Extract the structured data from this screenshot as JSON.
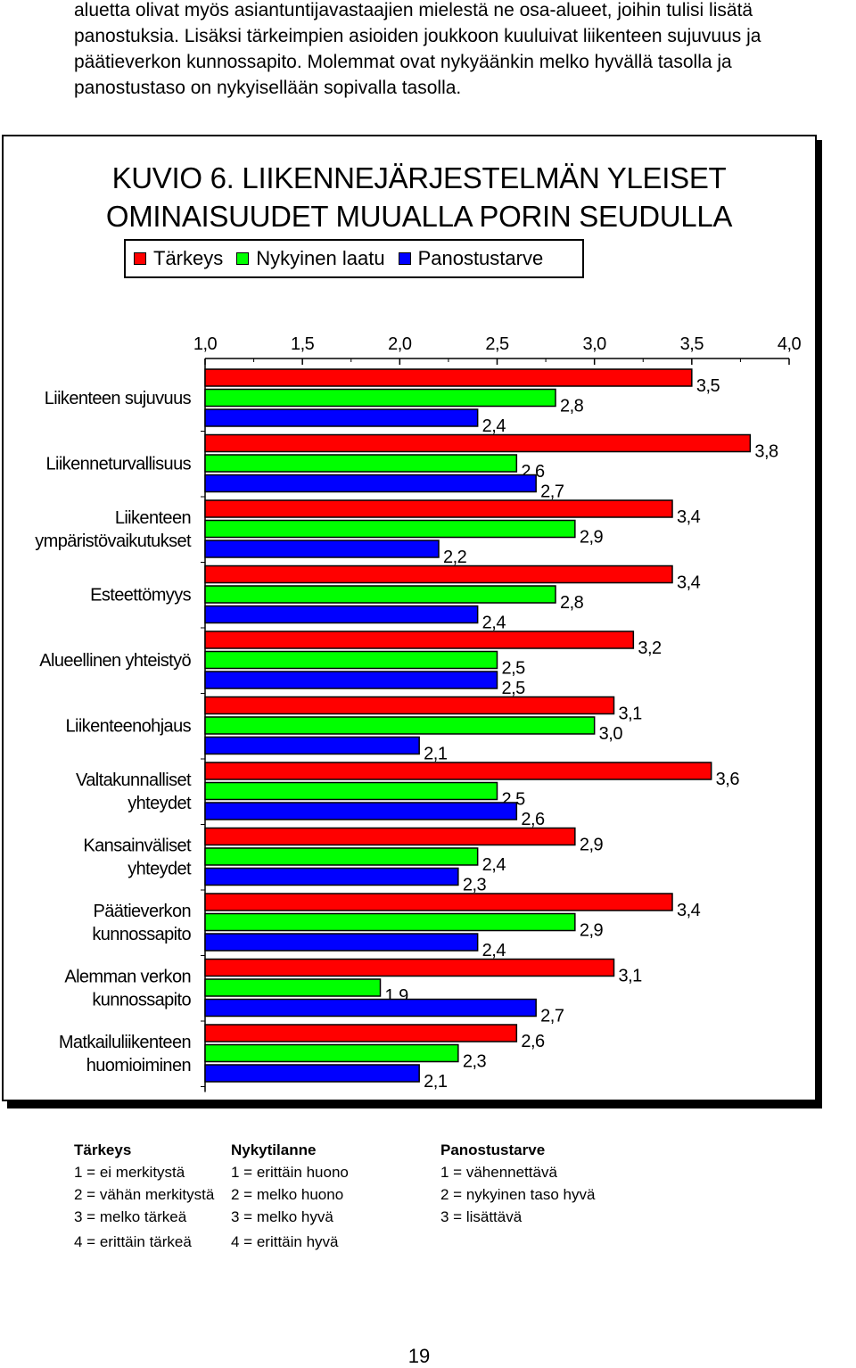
{
  "intro_lines": [
    "aluetta olivat myös asiantuntijavastaajien mielestä ne osa-alueet, joihin tulisi lisätä",
    "panostuksia. Lisäksi tärkeimpien asioiden joukkoon kuuluivat liikenteen sujuvuus ja",
    "päätieverkon kunnossapito. Molemmat ovat nykyäänkin melko hyvällä tasolla ja",
    "panostustaso on nykyisellään sopivalla tasolla."
  ],
  "figure": {
    "title_line1": "KUVIO 6. LIIKENNEJÄRJESTELMÄN YLEISET",
    "title_line2": "OMINAISUUDET MUUALLA PORIN SEUDULLA"
  },
  "chart_data": {
    "type": "bar",
    "orientation": "horizontal",
    "title": "KUVIO 6. LIIKENNEJÄRJESTELMÄN YLEISET OMINAISUUDET MUUALLA PORIN SEUDULLA",
    "xlim": [
      1.0,
      4.0
    ],
    "ticks": [
      "1,0",
      "1,5",
      "2,0",
      "2,5",
      "3,0",
      "3,5",
      "4,0"
    ],
    "tick_values": [
      1.0,
      1.5,
      2.0,
      2.5,
      3.0,
      3.5,
      4.0
    ],
    "legend_position": "top",
    "grid": false,
    "categories": [
      [
        "Liikenteen sujuvuus"
      ],
      [
        "Liikenneturvallisuus"
      ],
      [
        "Liikenteen",
        "ympäristövaikutukset"
      ],
      [
        "Esteettömyys"
      ],
      [
        "Alueellinen yhteistyö"
      ],
      [
        "Liikenteenohjaus"
      ],
      [
        "Valtakunnalliset",
        "yhteydet"
      ],
      [
        "Kansainväliset",
        "yhteydet"
      ],
      [
        "Päätieverkon",
        "kunnossapito"
      ],
      [
        "Alemman verkon",
        "kunnossapito"
      ],
      [
        "Matkailuliikenteen",
        "huomioiminen"
      ]
    ],
    "series": [
      {
        "name": "Tärkeys",
        "color": "#ff0000",
        "values": [
          3.5,
          3.8,
          3.4,
          3.4,
          3.2,
          3.1,
          3.6,
          2.9,
          3.4,
          3.1,
          2.6
        ],
        "labels": [
          "3,5",
          "3,8",
          "3,4",
          "3,4",
          "3,2",
          "3,1",
          "3,6",
          "2,9",
          "3,4",
          "3,1",
          "2,6"
        ]
      },
      {
        "name": "Nykyinen laatu",
        "color": "#00ff00",
        "values": [
          2.8,
          2.6,
          2.9,
          2.8,
          2.5,
          3.0,
          2.5,
          2.4,
          2.9,
          1.9,
          2.3
        ],
        "labels": [
          "2,8",
          "2,6",
          "2,9",
          "2,8",
          "2,5",
          "3,0",
          "2,5",
          "2,4",
          "2,9",
          "1,9",
          "2,3"
        ]
      },
      {
        "name": "Panostustarve",
        "color": "#0000ff",
        "values": [
          2.4,
          2.7,
          2.2,
          2.4,
          2.5,
          2.1,
          2.6,
          2.3,
          2.4,
          2.7,
          2.1
        ],
        "labels": [
          "2,4",
          "2,7",
          "2,2",
          "2,4",
          "2,5",
          "2,1",
          "2,6",
          "2,3",
          "2,4",
          "2,7",
          "2,1"
        ]
      }
    ]
  },
  "scales": [
    {
      "header": "Tärkeys",
      "lines": [
        "1 = ei merkitystä",
        "2 = vähän merkitystä",
        "3 = melko tärkeä",
        "4 = erittäin tärkeä"
      ]
    },
    {
      "header": "Nykytilanne",
      "lines": [
        "1 = erittäin huono",
        "2 = melko huono",
        "3 = melko hyvä",
        "4 = erittäin hyvä"
      ]
    },
    {
      "header": "Panostustarve",
      "lines": [
        "1 = vähennettävä",
        "2 = nykyinen taso hyvä",
        "3 = lisättävä"
      ]
    }
  ],
  "page_number": "19"
}
